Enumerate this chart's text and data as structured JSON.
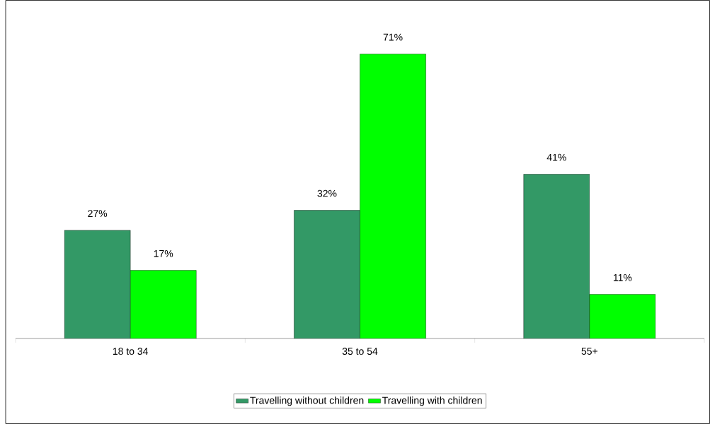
{
  "chart_data": {
    "type": "bar",
    "categories": [
      "18 to 34",
      "35 to 54",
      "55+"
    ],
    "series": [
      {
        "name": "Travelling without children",
        "color": "#339966",
        "values": [
          27,
          32,
          41
        ],
        "value_labels": [
          "27%",
          "32%",
          "41%"
        ]
      },
      {
        "name": "Travelling with children",
        "color": "#00ff00",
        "values": [
          17,
          71,
          11
        ],
        "value_labels": [
          "17%",
          "71%",
          "11%"
        ]
      }
    ],
    "legend": "bottom",
    "grid": false
  }
}
